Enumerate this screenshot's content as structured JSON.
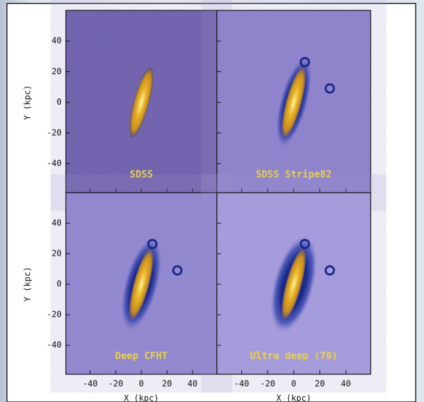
{
  "figure": {
    "y_label": "Y (kpc)",
    "x_label": "X (kpc)",
    "xlim": [
      -59,
      59
    ],
    "ylim": [
      -59,
      60
    ],
    "xticks": [
      -40,
      -20,
      0,
      20,
      40
    ],
    "yticks": [
      -40,
      -20,
      0,
      20,
      40
    ],
    "panels": [
      {
        "label": "SDSS"
      },
      {
        "label": "SDSS Stripe82"
      },
      {
        "label": "Deep CFHT"
      },
      {
        "label": "Ultra deep (70)"
      }
    ]
  }
}
